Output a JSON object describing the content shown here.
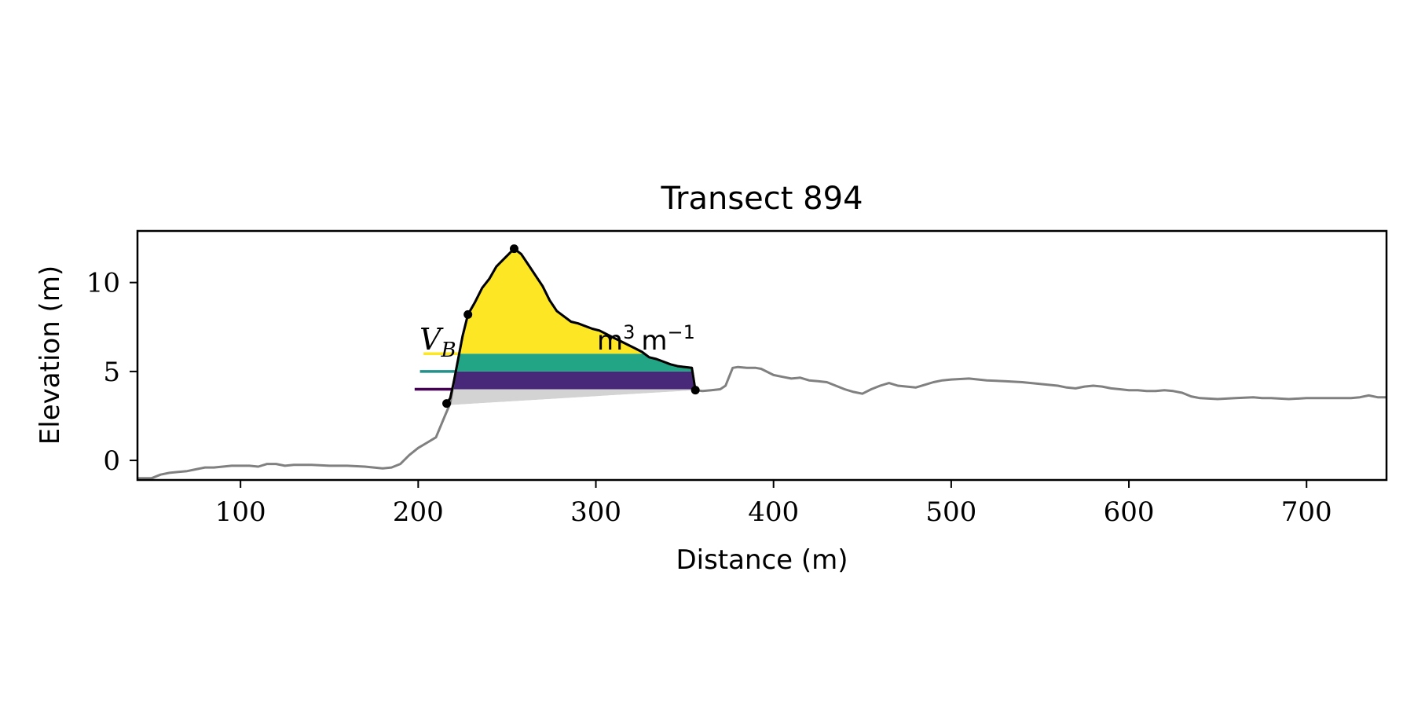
{
  "chart_data": {
    "type": "line",
    "title": "Transect 894",
    "xlabel": "Distance (m)",
    "ylabel": "Elevation (m)",
    "xlim": [
      42,
      745
    ],
    "ylim": [
      -1.1,
      12.9
    ],
    "xticks": [
      100,
      200,
      300,
      400,
      500,
      600,
      700
    ],
    "yticks": [
      0,
      5,
      10
    ],
    "grid": false,
    "profile": {
      "color": "#808080",
      "x": [
        42,
        50,
        55,
        60,
        65,
        70,
        75,
        80,
        85,
        90,
        95,
        100,
        105,
        110,
        115,
        120,
        125,
        130,
        140,
        150,
        160,
        170,
        175,
        180,
        185,
        190,
        195,
        200,
        205,
        210,
        215,
        218,
        220,
        225,
        228,
        232,
        236,
        240,
        244,
        248,
        254,
        258,
        262,
        266,
        270,
        274,
        278,
        282,
        286,
        290,
        294,
        298,
        302,
        306,
        310,
        314,
        318,
        322,
        326,
        330,
        334,
        338,
        342,
        346,
        350,
        354,
        356,
        360,
        365,
        370,
        373,
        377,
        380,
        385,
        390,
        393,
        397,
        400,
        405,
        410,
        415,
        420,
        425,
        430,
        435,
        440,
        445,
        450,
        455,
        460,
        465,
        470,
        475,
        480,
        485,
        490,
        495,
        500,
        510,
        520,
        530,
        540,
        550,
        555,
        560,
        565,
        570,
        575,
        580,
        585,
        590,
        595,
        600,
        605,
        610,
        615,
        620,
        625,
        630,
        635,
        640,
        650,
        660,
        670,
        675,
        680,
        690,
        700,
        710,
        720,
        725,
        730,
        735,
        740,
        745
      ],
      "y": [
        -1.0,
        -1.0,
        -0.8,
        -0.7,
        -0.65,
        -0.6,
        -0.5,
        -0.4,
        -0.4,
        -0.35,
        -0.3,
        -0.3,
        -0.3,
        -0.35,
        -0.2,
        -0.2,
        -0.3,
        -0.25,
        -0.25,
        -0.3,
        -0.3,
        -0.35,
        -0.4,
        -0.45,
        -0.4,
        -0.2,
        0.3,
        0.7,
        1.0,
        1.3,
        2.5,
        3.2,
        4.4,
        7.0,
        8.2,
        8.9,
        9.7,
        10.2,
        10.9,
        11.3,
        11.9,
        11.6,
        11.0,
        10.4,
        9.8,
        9.0,
        8.4,
        8.1,
        7.8,
        7.7,
        7.55,
        7.4,
        7.3,
        7.1,
        6.9,
        6.7,
        6.5,
        6.3,
        6.1,
        5.8,
        5.7,
        5.55,
        5.4,
        5.3,
        5.25,
        5.2,
        3.95,
        3.9,
        3.95,
        4.0,
        4.2,
        5.2,
        5.25,
        5.2,
        5.2,
        5.15,
        4.95,
        4.8,
        4.7,
        4.6,
        4.65,
        4.5,
        4.45,
        4.4,
        4.2,
        4.0,
        3.85,
        3.75,
        4.0,
        4.2,
        4.35,
        4.2,
        4.15,
        4.1,
        4.25,
        4.4,
        4.5,
        4.55,
        4.6,
        4.5,
        4.45,
        4.4,
        4.3,
        4.25,
        4.2,
        4.1,
        4.05,
        4.15,
        4.2,
        4.15,
        4.05,
        4.0,
        3.95,
        3.95,
        3.9,
        3.9,
        3.95,
        3.9,
        3.8,
        3.6,
        3.5,
        3.45,
        3.5,
        3.55,
        3.5,
        3.5,
        3.45,
        3.5,
        3.5,
        3.5,
        3.5,
        3.55,
        3.65,
        3.55,
        3.55
      ]
    },
    "dune_outline": {
      "color": "#000000",
      "x": [
        216,
        218,
        220,
        225,
        228,
        232,
        236,
        240,
        244,
        248,
        254,
        258,
        262,
        266,
        270,
        274,
        278,
        282,
        286,
        290,
        294,
        298,
        302,
        306,
        310,
        314,
        318,
        322,
        326,
        330,
        334,
        338,
        342,
        346,
        350,
        354,
        356
      ],
      "y": [
        3.2,
        3.5,
        4.4,
        7.0,
        8.2,
        8.9,
        9.7,
        10.2,
        10.9,
        11.3,
        11.9,
        11.6,
        11.0,
        10.4,
        9.8,
        9.0,
        8.4,
        8.1,
        7.8,
        7.7,
        7.55,
        7.4,
        7.3,
        7.1,
        6.9,
        6.7,
        6.5,
        6.3,
        6.1,
        5.8,
        5.7,
        5.55,
        5.4,
        5.3,
        5.25,
        5.2,
        3.95
      ]
    },
    "markers": [
      {
        "x": 216,
        "y": 3.2
      },
      {
        "x": 228,
        "y": 8.2
      },
      {
        "x": 254,
        "y": 11.9
      },
      {
        "x": 356,
        "y": 3.95
      }
    ],
    "bands": [
      {
        "color": "#d3d3d3",
        "lower_left": 3.1,
        "lower_right": 3.95,
        "upper": 4.0
      },
      {
        "color": "#482878",
        "lower": 4.0,
        "upper": 5.0
      },
      {
        "color": "#21a585",
        "lower": 5.0,
        "upper": 6.0
      },
      {
        "color": "#fde725",
        "lower": 6.0,
        "upper": 12.5
      }
    ],
    "level_lines": [
      {
        "y": 4.0,
        "x_start": 198,
        "color": "#440154"
      },
      {
        "y": 5.0,
        "x_start": 201,
        "color": "#21918c"
      },
      {
        "y": 6.0,
        "x_start": 203,
        "color": "#fde725"
      }
    ],
    "annotation": {
      "lead_var": "V",
      "lead_sub": "B",
      "tail": "m",
      "tail_sup": "3",
      "tail_unit": "m",
      "tail_unit_sup": "−1"
    }
  }
}
